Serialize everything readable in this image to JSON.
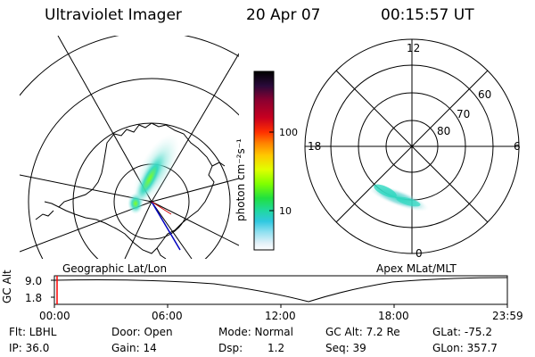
{
  "header": {
    "instrument": "Ultraviolet Imager",
    "date": "20 Apr 07",
    "time": "00:15:57 UT"
  },
  "left_panel": {
    "caption": "Geographic Lat/Lon"
  },
  "right_panel": {
    "caption": "Apex MLat/MLT",
    "mlt_labels": {
      "top": "12",
      "left": "18",
      "right": "6",
      "bottom": "0"
    },
    "mlat_labels": [
      "60",
      "70",
      "80"
    ]
  },
  "colorbar": {
    "unit_label": "photon cm⁻²s⁻¹",
    "ticks": [
      "100",
      "10"
    ],
    "colors": [
      "#000000",
      "#2a0a3a",
      "#8a0030",
      "#c80020",
      "#ff3000",
      "#ff8000",
      "#ffc800",
      "#e0ff00",
      "#80ff00",
      "#20e040",
      "#20d8a0",
      "#30c8e0",
      "#90e0f0",
      "#e0f0f8",
      "#ffffff"
    ]
  },
  "timeline": {
    "ylabel": "GC Alt",
    "y_ticks": [
      "9.0",
      "1.8"
    ],
    "x_ticks": [
      "00:00",
      "06:00",
      "12:00",
      "18:00",
      "23:59"
    ],
    "marker_color": "#ff0000"
  },
  "status": {
    "filter": "Flt: LBHL",
    "ip": "IP: 36.0",
    "door": "Door: Open",
    "gain": "Gain: 14",
    "mode": "Mode: Normal",
    "dsp_label": "Dsp:",
    "dsp_value": "1.2",
    "gc_alt": "GC Alt: 7.2 Re",
    "seq": "Seq: 39",
    "glat": "GLat: -75.2",
    "glon": "GLon: 357.7"
  },
  "colors": {
    "aurora_core": "#30d8c0",
    "aurora_bright": "#80ff20",
    "orbit_line": "#0000c0"
  }
}
